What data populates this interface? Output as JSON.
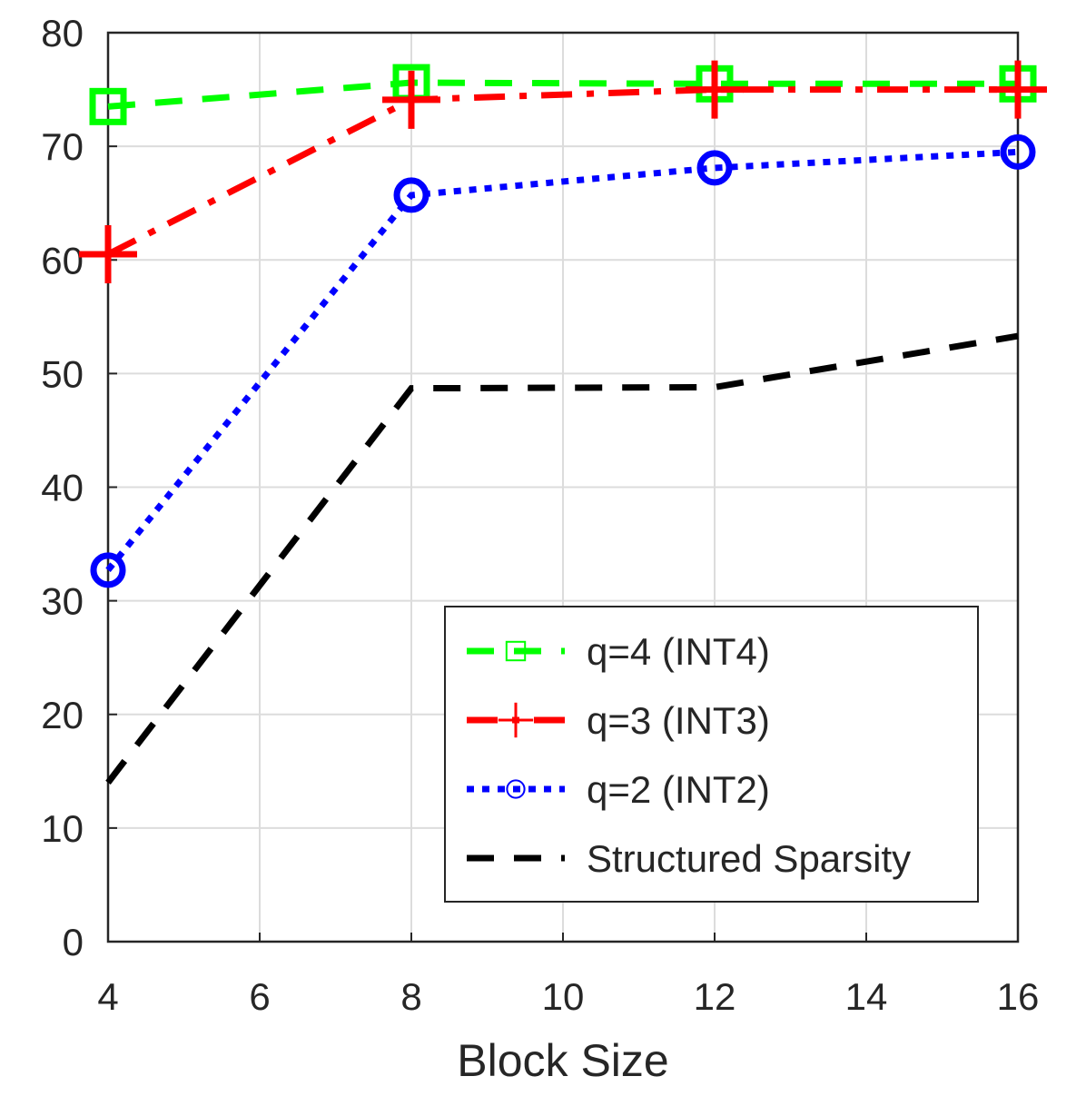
{
  "chart_data": {
    "type": "line",
    "title": "",
    "xlabel": "Block Size",
    "ylabel": "",
    "xlim": [
      4,
      16
    ],
    "ylim": [
      0,
      80
    ],
    "xticks": [
      4,
      6,
      8,
      10,
      12,
      14,
      16
    ],
    "yticks": [
      0,
      10,
      20,
      30,
      40,
      50,
      60,
      70,
      80
    ],
    "grid": true,
    "legend_position": "bottom-right",
    "x": [
      4,
      8,
      12,
      16
    ],
    "series": [
      {
        "name": "q=4 (INT4)",
        "values": [
          73.5,
          75.6,
          75.5,
          75.5
        ],
        "color": "#00ff00",
        "dash": "dashed",
        "marker": "square"
      },
      {
        "name": "q=3 (INT3)",
        "values": [
          60.5,
          74.1,
          75.0,
          75.0
        ],
        "color": "#ff0000",
        "dash": "dashdot",
        "marker": "plus"
      },
      {
        "name": "q=2 (INT2)",
        "values": [
          32.7,
          65.7,
          68.1,
          69.5
        ],
        "color": "#0000ff",
        "dash": "dotted",
        "marker": "circle"
      },
      {
        "name": "Structured Sparsity",
        "values": [
          14.0,
          48.7,
          48.8,
          53.3
        ],
        "color": "#000000",
        "dash": "dashed",
        "marker": "none"
      }
    ]
  }
}
